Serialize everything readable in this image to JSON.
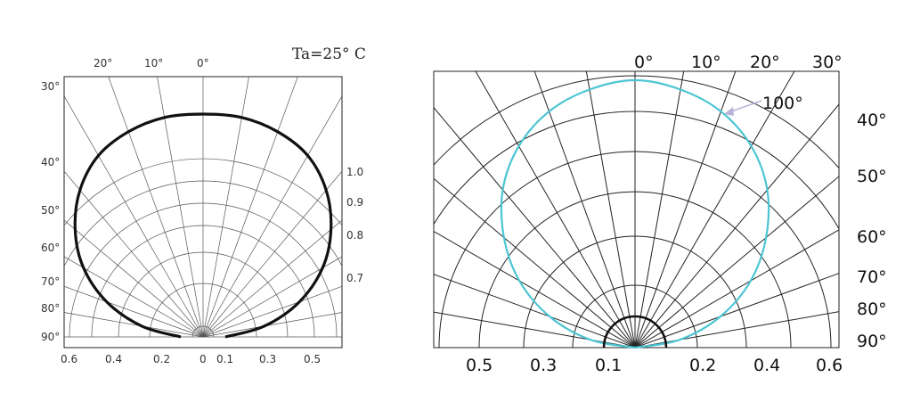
{
  "chart_data": [
    {
      "type": "polar",
      "title": "",
      "annotation": "Ta=25° C",
      "top_angle_labels": [
        "20°",
        "10°",
        "0°"
      ],
      "left_angle_labels": [
        "30°",
        "40°",
        "50°",
        "60°",
        "70°",
        "80°",
        "90°"
      ],
      "right_radius_labels": [
        "1.0",
        "0.9",
        "0.8",
        "0.7"
      ],
      "bottom_axis_labels": [
        "0.6",
        "0.4",
        "0.2",
        "0",
        "0.1",
        "0.3",
        "0.5"
      ],
      "series": [
        {
          "color": "#111111",
          "angles_deg": [
            -90,
            -80,
            -70,
            -60,
            -50,
            -40,
            -30,
            -20,
            -10,
            0,
            10,
            20,
            30,
            40,
            50,
            60,
            70,
            80,
            90
          ],
          "values": [
            0.1,
            0.28,
            0.46,
            0.62,
            0.75,
            0.86,
            0.94,
            0.98,
            1.0,
            1.0,
            1.0,
            0.98,
            0.94,
            0.86,
            0.75,
            0.62,
            0.46,
            0.28,
            0.1
          ]
        }
      ],
      "grid": true
    },
    {
      "type": "polar",
      "title": "",
      "top_angle_labels": [
        "0°",
        "10°",
        "20°",
        "30°"
      ],
      "right_angle_labels": [
        "40°",
        "50°",
        "60°",
        "70°",
        "80°",
        "90°"
      ],
      "annotation": "100°",
      "bottom_axis_labels": [
        "0.5",
        "0.3",
        "0.1",
        "0.2",
        "0.4",
        "0.6"
      ],
      "series": [
        {
          "color": "#4cc5d3",
          "angles_deg": [
            -90,
            -80,
            -70,
            -60,
            -50,
            -40,
            -30,
            -20,
            -10,
            0,
            10,
            20,
            30,
            40,
            50,
            60,
            70,
            80,
            90
          ],
          "values": [
            0.0,
            0.17,
            0.34,
            0.5,
            0.64,
            0.77,
            0.87,
            0.94,
            0.98,
            1.0,
            0.98,
            0.94,
            0.87,
            0.77,
            0.64,
            0.5,
            0.34,
            0.17,
            0.0
          ]
        }
      ],
      "grid": true
    }
  ]
}
